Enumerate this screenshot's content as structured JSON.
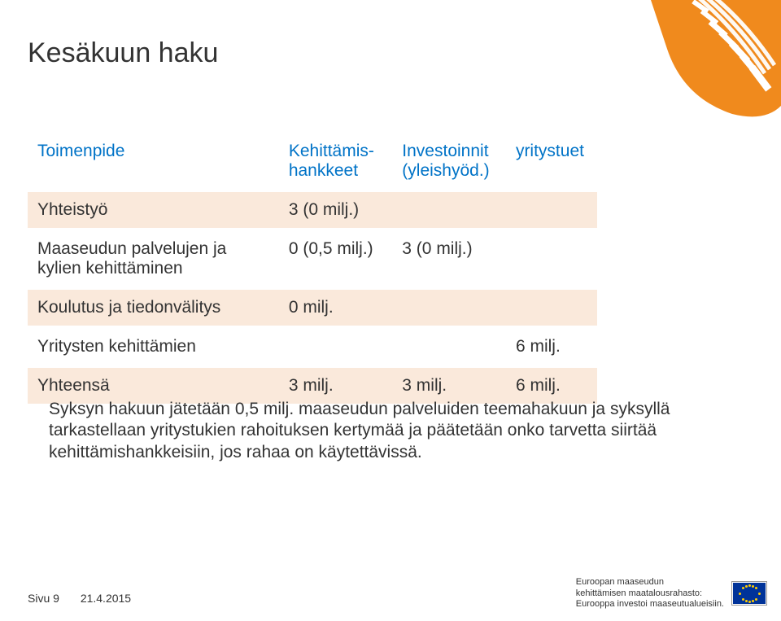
{
  "corner": {
    "bg_color": "#f08a1d",
    "stripe_color": "#ffffff"
  },
  "title": "Kesäkuun haku",
  "table": {
    "header_color": "#0073c7",
    "stripe_color": "#fae9db",
    "headers": [
      "Toimenpide",
      "Kehittämis-hankkeet",
      "Investoinnit (yleishyöd.)",
      "yritystuet"
    ],
    "rows": [
      {
        "striped": true,
        "cells": [
          "Yhteistyö",
          "3 (0 milj.)",
          "",
          ""
        ]
      },
      {
        "striped": false,
        "cells": [
          "Maaseudun palvelujen ja kylien kehittäminen",
          "0 (0,5 milj.)",
          "3 (0 milj.)",
          ""
        ]
      },
      {
        "striped": true,
        "cells": [
          "Koulutus ja tiedonvälitys",
          "0 milj.",
          "",
          ""
        ]
      },
      {
        "striped": false,
        "cells": [
          "Yritysten kehittämien",
          "",
          "",
          "6 milj."
        ]
      },
      {
        "striped": true,
        "cells": [
          "Yhteensä",
          "3 milj.",
          "3 milj.",
          "6 milj."
        ]
      }
    ]
  },
  "paragraph": "Syksyn hakuun jätetään 0,5 milj. maaseudun palveluiden teemahakuun ja syksyllä tarkastellaan yritystukien rahoituksen kertymää ja päätetään onko tarvetta siirtää kehittämishankkeisiin, jos rahaa on käytettävissä.",
  "footer": {
    "page": "Sivu 9",
    "date": "21.4.2015"
  },
  "eu": {
    "line1": "Euroopan maaseudun",
    "line2": "kehittämisen maatalousrahasto:",
    "line3": "Eurooppa investoi maaseutualueisiin."
  }
}
